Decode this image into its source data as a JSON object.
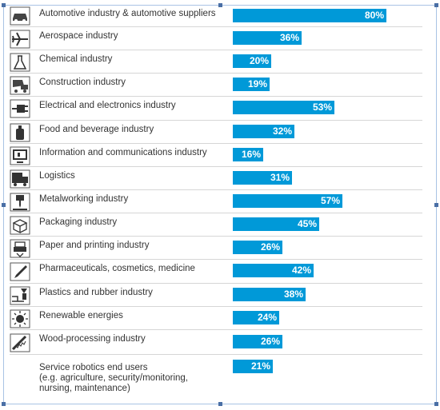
{
  "chart_data": {
    "type": "bar",
    "orientation": "horizontal",
    "unit": "%",
    "xlim": [
      0,
      100
    ],
    "grid": false,
    "categories": [
      "Automotive industry & automotive suppliers",
      "Aerospace industry",
      "Chemical industry",
      "Construction industry",
      "Electrical and electronics industry",
      "Food and beverage industry",
      "Information and communications industry",
      "Logistics",
      "Metalworking industry",
      "Packaging industry",
      "Paper and printing industry",
      "Pharmaceuticals, cosmetics, medicine",
      "Plastics and rubber industry",
      "Renewable energies",
      "Wood-processing industry",
      "Service robotics end users\n(e.g. agriculture, security/monitoring,\nnursing, maintenance)"
    ],
    "values": [
      80,
      36,
      20,
      19,
      53,
      32,
      16,
      31,
      57,
      45,
      26,
      42,
      38,
      24,
      26,
      21
    ],
    "value_labels": [
      "80%",
      "36%",
      "20%",
      "19%",
      "53%",
      "32%",
      "16%",
      "31%",
      "57%",
      "45%",
      "26%",
      "42%",
      "38%",
      "24%",
      "26%",
      "21%"
    ],
    "icons": [
      "car-icon",
      "airplane-icon",
      "flask-icon",
      "mixer-truck-icon",
      "plug-icon",
      "bottle-icon",
      "monitor-icon",
      "truck-icon",
      "drill-icon",
      "box-icon",
      "printer-icon",
      "syringe-icon",
      "extruder-icon",
      "sun-icon",
      "saw-icon",
      ""
    ],
    "bar_color": "#0099d8"
  }
}
